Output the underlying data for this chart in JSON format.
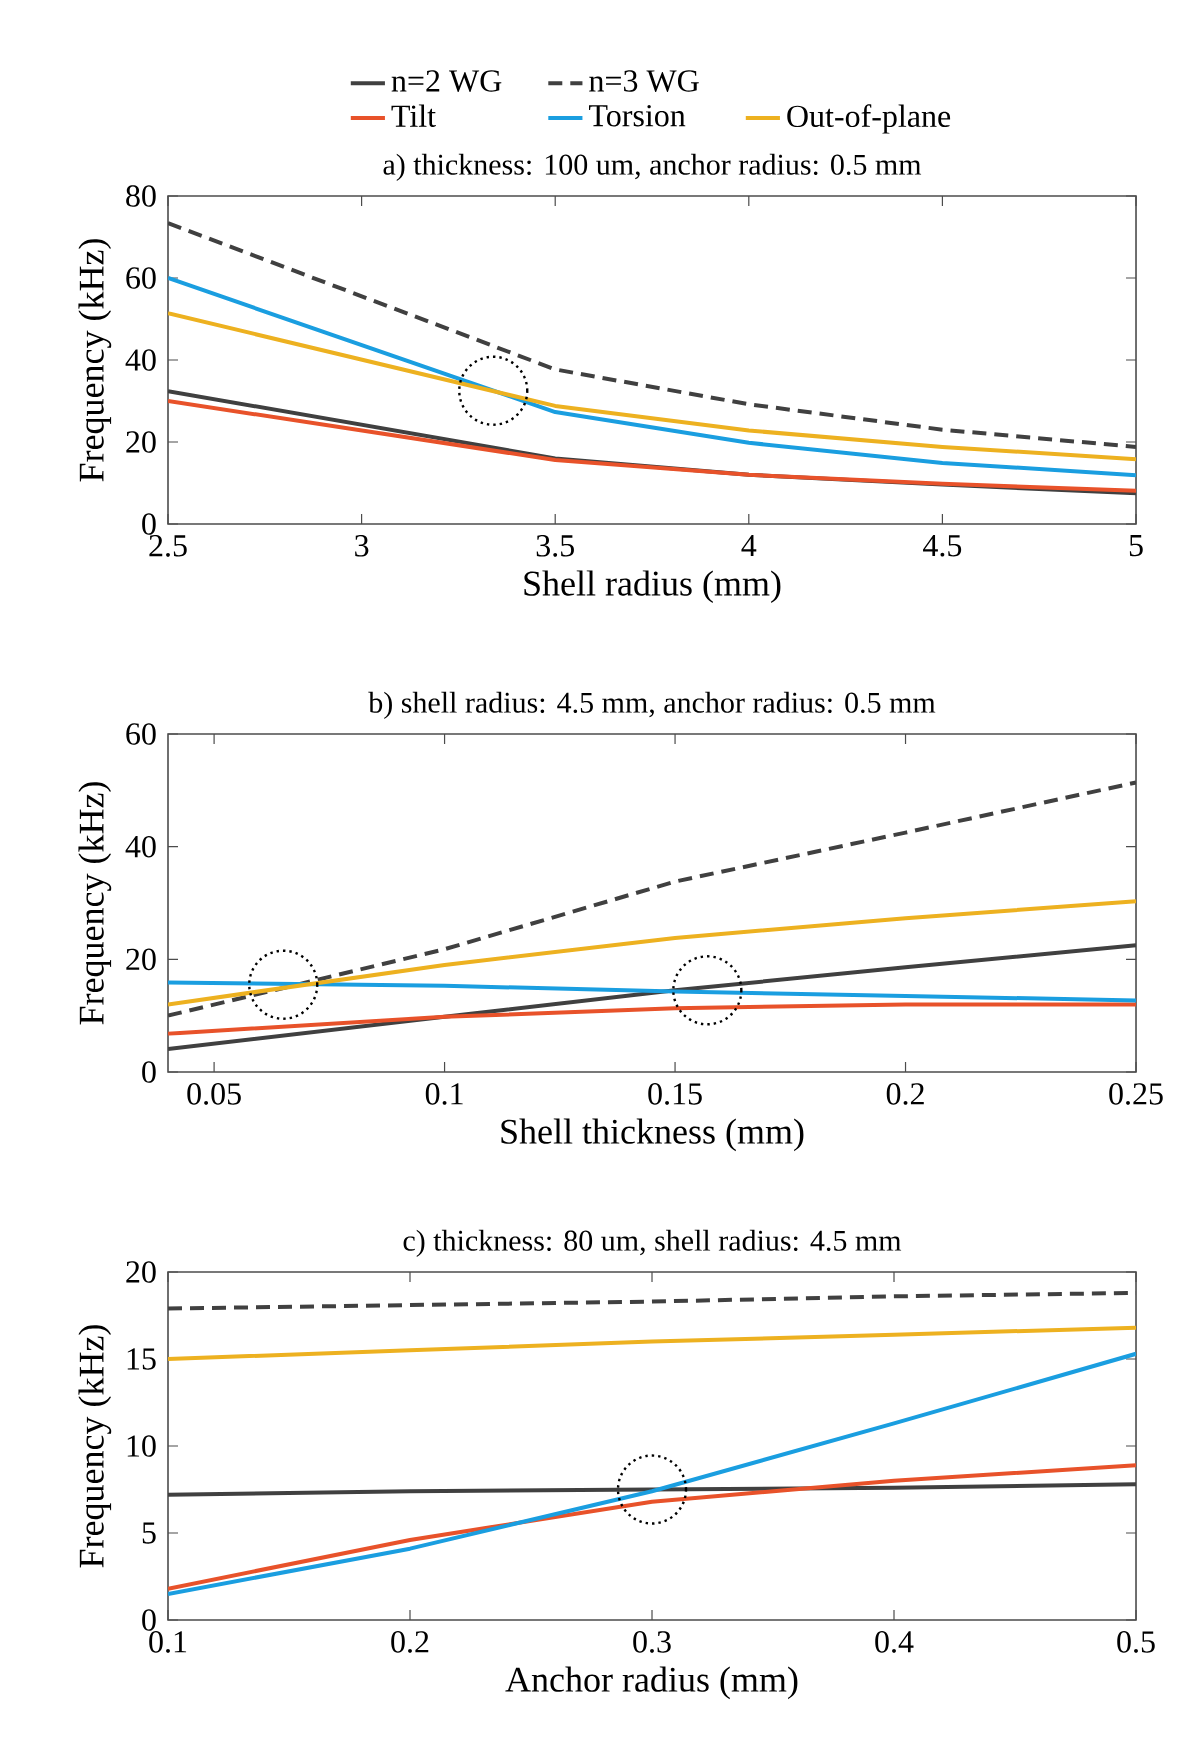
{
  "chart_data": [
    {
      "type": "line",
      "title": "a) thickness: 100 um, anchor radius: 0.5 mm",
      "xlabel": "Shell radius (mm)",
      "ylabel": "Frequency (kHz)",
      "x": [
        2.5,
        3.5,
        4,
        4.5,
        5
      ],
      "xlim": [
        2.5,
        5
      ],
      "xticks": [
        2.5,
        3,
        3.5,
        4,
        4.5,
        5
      ],
      "ylim": [
        0,
        80
      ],
      "yticks": [
        0,
        20,
        40,
        60,
        80
      ],
      "legend": "top",
      "marker": "none",
      "series": [
        {
          "name": "n=2 WG",
          "color": "#404040",
          "line_style": "solid",
          "values": [
            32.4,
            16,
            12,
            9.6,
            7.5
          ]
        },
        {
          "name": "n=3 WG",
          "color": "#404040",
          "line_style": "dashed",
          "values": [
            73.4,
            37.7,
            29.2,
            23,
            18.8
          ]
        },
        {
          "name": "Tilt",
          "color": "#e8522a",
          "line_style": "solid",
          "values": [
            30,
            15.6,
            12,
            9.8,
            8.1
          ]
        },
        {
          "name": "Torsion",
          "color": "#1a9ee0",
          "line_style": "solid",
          "values": [
            60,
            27.3,
            19.8,
            14.9,
            11.9
          ]
        },
        {
          "name": "Out-of-plane",
          "color": "#edb120",
          "line_style": "solid",
          "values": [
            51.4,
            28.8,
            22.8,
            18.8,
            15.8
          ]
        }
      ]
    },
    {
      "type": "line",
      "title": "b) shell radius: 4.5 mm, anchor radius: 0.5 mm",
      "xlabel": "Shell thickness (mm)",
      "ylabel": "Frequency (kHz)",
      "x": [
        0.04,
        0.1,
        0.15,
        0.2,
        0.25
      ],
      "xlim": [
        0.04,
        0.25
      ],
      "xticks": [
        0.05,
        0.1,
        0.15,
        0.2,
        0.25
      ],
      "ylim": [
        0,
        60
      ],
      "yticks": [
        0,
        20,
        40,
        60
      ],
      "marker": "none",
      "series": [
        {
          "color": "#404040",
          "line_style": "solid",
          "values": [
            4.1,
            9.8,
            14.5,
            18.6,
            22.5
          ]
        },
        {
          "color": "#404040",
          "line_style": "dashed",
          "values": [
            10,
            21.8,
            33.8,
            42.5,
            51.4
          ]
        },
        {
          "color": "#e8522a",
          "line_style": "solid",
          "values": [
            6.8,
            9.8,
            11.3,
            12,
            12
          ]
        },
        {
          "color": "#1a9ee0",
          "line_style": "solid",
          "values": [
            15.9,
            15.3,
            14.3,
            13.5,
            12.7
          ]
        },
        {
          "color": "#edb120",
          "line_style": "solid",
          "values": [
            12,
            19,
            23.8,
            27.3,
            30.3
          ]
        }
      ]
    },
    {
      "type": "line",
      "title": "c) thickness: 80 um, shell radius: 4.5 mm",
      "xlabel": "Anchor radius (mm)",
      "ylabel": "Frequency (kHz)",
      "x": [
        0.1,
        0.2,
        0.3,
        0.4,
        0.5
      ],
      "xlim": [
        0.1,
        0.5
      ],
      "xticks": [
        0.1,
        0.2,
        0.3,
        0.4,
        0.5
      ],
      "ylim": [
        0,
        20
      ],
      "yticks": [
        0,
        5,
        10,
        15,
        20
      ],
      "marker": "none",
      "series": [
        {
          "color": "#404040",
          "line_style": "solid",
          "values": [
            7.2,
            7.4,
            7.5,
            7.6,
            7.8
          ]
        },
        {
          "color": "#404040",
          "line_style": "dashed",
          "values": [
            17.9,
            18.1,
            18.3,
            18.6,
            18.8
          ]
        },
        {
          "color": "#e8522a",
          "line_style": "solid",
          "values": [
            1.8,
            4.6,
            6.8,
            8,
            8.9
          ]
        },
        {
          "color": "#1a9ee0",
          "line_style": "solid",
          "values": [
            1.5,
            4.1,
            7.4,
            11.3,
            15.3
          ]
        },
        {
          "color": "#edb120",
          "line_style": "solid",
          "values": [
            15,
            15.5,
            16,
            16.4,
            16.8
          ]
        }
      ]
    }
  ]
}
